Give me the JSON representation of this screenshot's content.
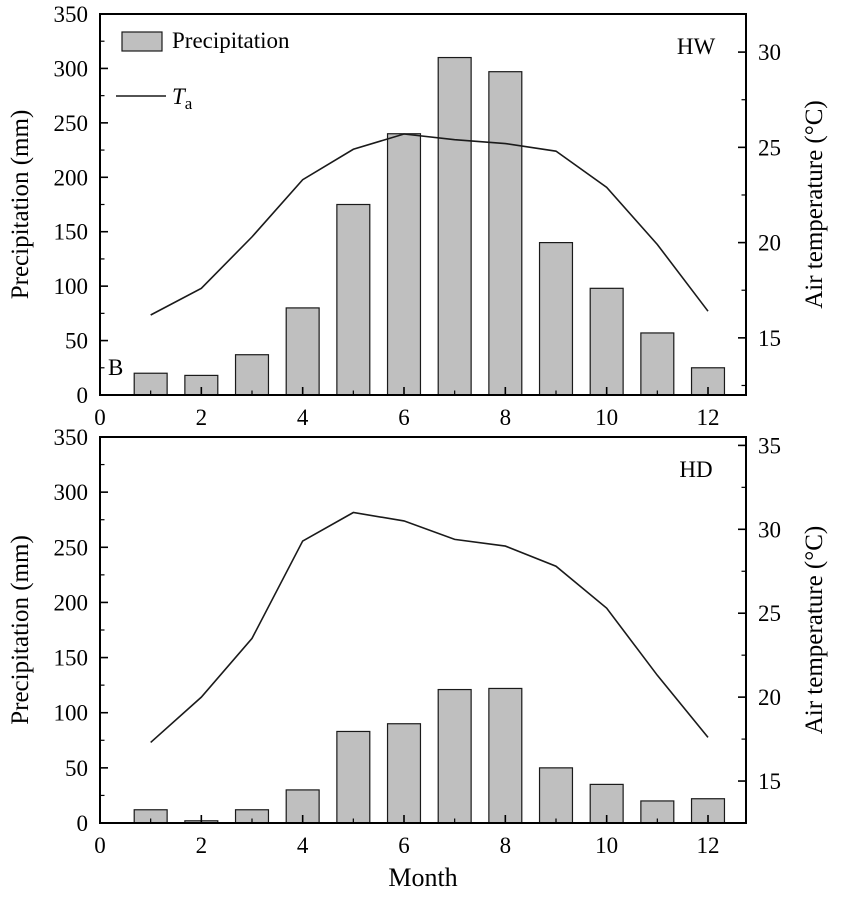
{
  "figure": {
    "background": "#ffffff",
    "bar_fill": "#bfbfbf",
    "bar_stroke": "#1a1a1a",
    "line_color": "#1a1a1a",
    "axis_color": "#000000",
    "xlabel": "Month"
  },
  "legend": {
    "bar_label": "Precipitation",
    "line_label_main": "T",
    "line_label_sub": "a"
  },
  "chart_data": [
    {
      "type": "bar+line",
      "panel_label": "HW",
      "corner_label": "B",
      "xlabel": "",
      "ylabel_left": "Precipitation (mm)",
      "ylabel_right": "Air temperature (°C)",
      "xlim": [
        0,
        12.75
      ],
      "x_ticks": [
        0,
        2,
        4,
        6,
        8,
        10,
        12
      ],
      "ylim_left": [
        0,
        350
      ],
      "yticks_left": [
        0,
        50,
        100,
        150,
        200,
        250,
        300,
        350
      ],
      "ylim_right": [
        12,
        32
      ],
      "yticks_right": [
        15,
        20,
        25,
        30
      ],
      "categories": [
        1,
        2,
        3,
        4,
        5,
        6,
        7,
        8,
        9,
        10,
        11,
        12
      ],
      "series": [
        {
          "name": "Precipitation",
          "type": "bar",
          "axis": "left",
          "values": [
            20,
            18,
            37,
            80,
            175,
            240,
            310,
            297,
            140,
            98,
            57,
            25
          ]
        },
        {
          "name": "Ta",
          "type": "line",
          "axis": "right",
          "values": [
            16.2,
            17.6,
            20.3,
            23.3,
            24.9,
            25.7,
            25.4,
            25.2,
            24.8,
            22.9,
            19.9,
            16.4
          ]
        }
      ],
      "show_legend": true,
      "grid": false,
      "legend_position": "upper-left"
    },
    {
      "type": "bar+line",
      "panel_label": "HD",
      "corner_label": "",
      "xlabel": "Month",
      "ylabel_left": "Precipitation (mm)",
      "ylabel_right": "Air temperature (°C)",
      "xlim": [
        0,
        12.75
      ],
      "x_ticks": [
        0,
        2,
        4,
        6,
        8,
        10,
        12
      ],
      "ylim_left": [
        0,
        350
      ],
      "yticks_left": [
        0,
        50,
        100,
        150,
        200,
        250,
        300,
        350
      ],
      "ylim_right": [
        12.5,
        35.5
      ],
      "yticks_right": [
        15,
        20,
        25,
        30,
        35
      ],
      "categories": [
        1,
        2,
        3,
        4,
        5,
        6,
        7,
        8,
        9,
        10,
        11,
        12
      ],
      "series": [
        {
          "name": "Precipitation",
          "type": "bar",
          "axis": "left",
          "values": [
            12,
            2,
            12,
            30,
            83,
            90,
            121,
            122,
            50,
            35,
            20,
            22
          ]
        },
        {
          "name": "Ta",
          "type": "line",
          "axis": "right",
          "values": [
            17.3,
            20.0,
            23.5,
            29.3,
            31.0,
            30.5,
            29.4,
            29.0,
            27.8,
            25.3,
            21.3,
            17.6
          ]
        }
      ],
      "show_legend": false,
      "grid": false,
      "legend_position": "none"
    }
  ]
}
